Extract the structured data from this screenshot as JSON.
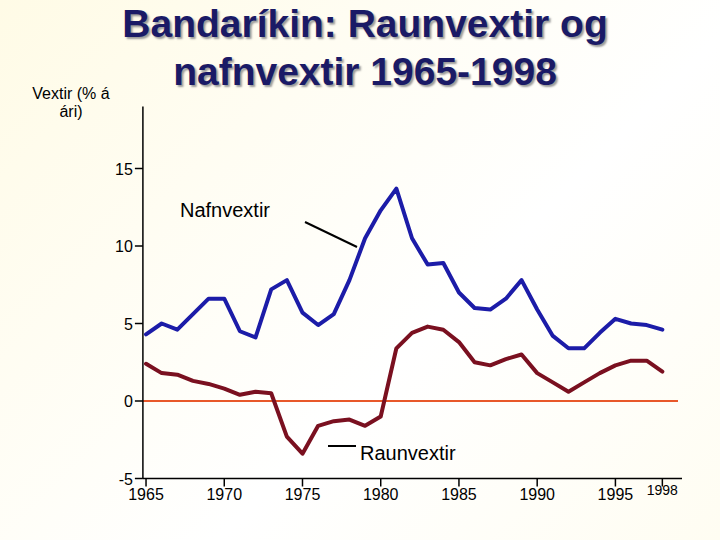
{
  "chart_data": {
    "type": "line",
    "title": "Bandaríkin: Raunvextir og nafnvextir 1965-1998",
    "y_label": "Vextir (% á ári)",
    "x": [
      1965,
      1966,
      1967,
      1968,
      1969,
      1970,
      1971,
      1972,
      1973,
      1974,
      1975,
      1976,
      1977,
      1978,
      1979,
      1980,
      1981,
      1982,
      1983,
      1984,
      1985,
      1986,
      1987,
      1988,
      1989,
      1990,
      1991,
      1992,
      1993,
      1994,
      1995,
      1996,
      1997,
      1998
    ],
    "series": [
      {
        "name": "Nafnvextir",
        "color": "#1c1ca8",
        "values": [
          4.3,
          5.0,
          4.6,
          5.6,
          6.6,
          6.6,
          4.5,
          4.1,
          7.2,
          7.8,
          5.7,
          4.9,
          5.6,
          7.8,
          10.5,
          12.3,
          13.7,
          10.5,
          8.8,
          8.9,
          7.0,
          6.0,
          5.9,
          6.6,
          7.8,
          5.9,
          4.2,
          3.4,
          3.4,
          4.4,
          5.3,
          5.0,
          4.9,
          4.6
        ]
      },
      {
        "name": "Raunvextir",
        "color": "#7a1020",
        "values": [
          2.4,
          1.8,
          1.7,
          1.3,
          1.1,
          0.8,
          0.4,
          0.6,
          0.5,
          -2.3,
          -3.4,
          -1.6,
          -1.3,
          -1.2,
          -1.6,
          -1.0,
          3.4,
          4.4,
          4.8,
          4.6,
          3.8,
          2.5,
          2.3,
          2.7,
          3.0,
          1.8,
          1.2,
          0.6,
          1.2,
          1.8,
          2.3,
          2.6,
          2.6,
          1.9
        ]
      }
    ],
    "xlim": [
      1964.8,
      1999
    ],
    "xticks": [
      1965,
      1970,
      1975,
      1980,
      1985,
      1990,
      1995,
      1998
    ],
    "ylim": [
      -5,
      19
    ],
    "yticks": [
      -5,
      0,
      5,
      10,
      15
    ],
    "zero_line": {
      "value": 0,
      "color": "#e8582a"
    },
    "grid": false
  }
}
